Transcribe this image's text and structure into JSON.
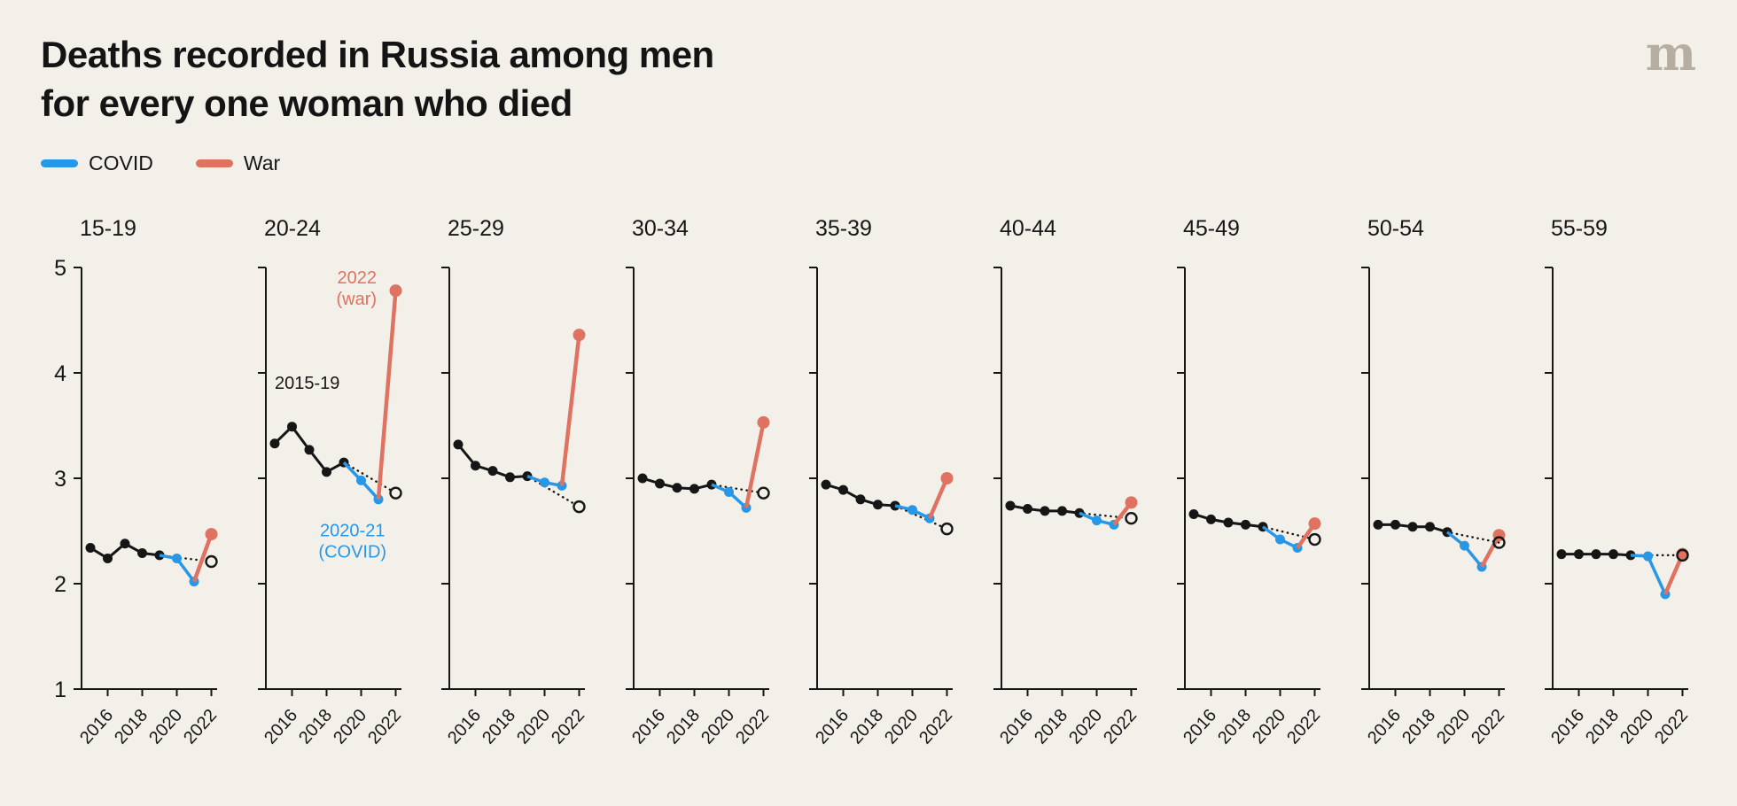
{
  "header": {
    "title_line1": "Deaths recorded in Russia among men",
    "title_line2": "for every one woman who died",
    "logo": "m"
  },
  "legend": {
    "covid": "COVID",
    "war": "War"
  },
  "colors": {
    "covid": "#2797e8",
    "war": "#df7260",
    "black": "#161616",
    "background": "#f3f0e9",
    "logo": "#b5aea1"
  },
  "chart_data": {
    "type": "line",
    "title": "Deaths recorded in Russia among men for every one woman who died",
    "xlabel": "",
    "ylabel": "",
    "ylim": [
      1,
      5
    ],
    "yticks": [
      5,
      4,
      3,
      2,
      1
    ],
    "xticks": [
      2016,
      2018,
      2020,
      2022
    ],
    "black_years": [
      2015,
      2016,
      2017,
      2018,
      2019
    ],
    "covid_years": [
      2020,
      2021
    ],
    "war_year": 2022,
    "legend_entries": [
      "COVID",
      "War"
    ],
    "panels": [
      {
        "age": "15-19",
        "black": [
          2.34,
          2.24,
          2.38,
          2.29,
          2.27
        ],
        "covid": [
          2.24,
          2.02
        ],
        "war": 2.47,
        "expected": 2.21
      },
      {
        "age": "20-24",
        "black": [
          3.33,
          3.49,
          3.27,
          3.06,
          3.15
        ],
        "covid": [
          2.98,
          2.8
        ],
        "war": 4.78,
        "expected": 2.86
      },
      {
        "age": "25-29",
        "black": [
          3.32,
          3.12,
          3.07,
          3.01,
          3.02
        ],
        "covid": [
          2.96,
          2.93
        ],
        "war": 4.36,
        "expected": 2.73
      },
      {
        "age": "30-34",
        "black": [
          3.0,
          2.95,
          2.91,
          2.9,
          2.94
        ],
        "covid": [
          2.87,
          2.72
        ],
        "war": 3.53,
        "expected": 2.86
      },
      {
        "age": "35-39",
        "black": [
          2.94,
          2.89,
          2.8,
          2.75,
          2.74
        ],
        "covid": [
          2.7,
          2.62
        ],
        "war": 3.0,
        "expected": 2.52
      },
      {
        "age": "40-44",
        "black": [
          2.74,
          2.71,
          2.69,
          2.69,
          2.67
        ],
        "covid": [
          2.6,
          2.56
        ],
        "war": 2.77,
        "expected": 2.62
      },
      {
        "age": "45-49",
        "black": [
          2.66,
          2.61,
          2.58,
          2.56,
          2.54
        ],
        "covid": [
          2.42,
          2.34
        ],
        "war": 2.57,
        "expected": 2.42
      },
      {
        "age": "50-54",
        "black": [
          2.56,
          2.56,
          2.54,
          2.54,
          2.49
        ],
        "covid": [
          2.36,
          2.16
        ],
        "war": 2.46,
        "expected": 2.39
      },
      {
        "age": "55-59",
        "black": [
          2.28,
          2.28,
          2.28,
          2.28,
          2.27
        ],
        "covid": [
          2.26,
          1.9
        ],
        "war": 2.28,
        "expected": 2.27
      }
    ],
    "annotations": [
      {
        "panel": "20-24",
        "lines": [
          "2022",
          "(war)"
        ],
        "color": "#df7260",
        "x_year": 2020.9,
        "y_value": 4.85,
        "anchor": "end"
      },
      {
        "panel": "20-24",
        "lines": [
          "2015-19"
        ],
        "color": "#161616",
        "x_year": 2015.0,
        "y_value": 3.85,
        "anchor": "start"
      },
      {
        "panel": "20-24",
        "lines": [
          "2020-21",
          "(COVID)"
        ],
        "color": "#2797e8",
        "x_year": 2019.5,
        "y_value": 2.45,
        "anchor": "middle"
      }
    ]
  }
}
